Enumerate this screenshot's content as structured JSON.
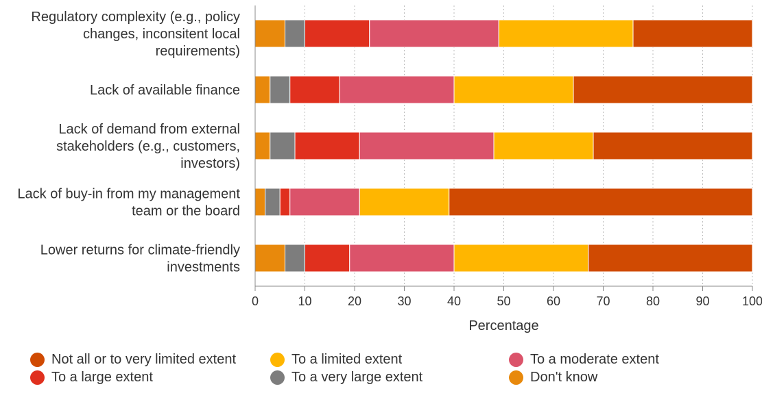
{
  "chart_data": {
    "type": "bar",
    "orientation": "horizontal",
    "stacked": true,
    "title": "",
    "xlabel": "Percentage",
    "ylabel": "",
    "xlim": [
      0,
      100
    ],
    "xticks": [
      "0",
      "10",
      "20",
      "30",
      "40",
      "50",
      "60",
      "70",
      "80",
      "90",
      "100"
    ],
    "grid": "vertical dotted",
    "legend_position": "bottom",
    "categories": [
      [
        "Regulatory complexity (e.g., policy",
        "changes, inconsitent local",
        "requirements)"
      ],
      [
        "Lack of available finance"
      ],
      [
        "Lack of demand from external",
        "stakeholders (e.g., customers,",
        "investors)"
      ],
      [
        "Lack of buy-in from my management",
        "team or the board"
      ],
      [
        "Lower returns for climate-friendly",
        "investments"
      ]
    ],
    "series": [
      {
        "name": "Don't know",
        "color": "#E8890C",
        "values": [
          6,
          3,
          3,
          2,
          6
        ]
      },
      {
        "name": "To a very large extent",
        "color": "#7D7D7D",
        "values": [
          4,
          4,
          5,
          3,
          4
        ]
      },
      {
        "name": "To a large extent",
        "color": "#E0301E",
        "values": [
          13,
          10,
          13,
          2,
          9
        ]
      },
      {
        "name": "To a moderate extent",
        "color": "#DB536A",
        "values": [
          26,
          23,
          27,
          14,
          21
        ]
      },
      {
        "name": "To a limited extent",
        "color": "#FFB600",
        "values": [
          27,
          24,
          20,
          18,
          27
        ]
      },
      {
        "name": "Not all or to very limited extent",
        "color": "#D04A02",
        "values": [
          24,
          36,
          32,
          61,
          33
        ]
      }
    ],
    "legend": [
      {
        "label": "Not all or to very limited extent",
        "color": "#D04A02"
      },
      {
        "label": "To a limited extent",
        "color": "#FFB600"
      },
      {
        "label": "To a moderate extent",
        "color": "#DB536A"
      },
      {
        "label": "To a large extent",
        "color": "#E0301E"
      },
      {
        "label": "To a very large extent",
        "color": "#7D7D7D"
      },
      {
        "label": "Don't know",
        "color": "#E8890C"
      }
    ]
  }
}
